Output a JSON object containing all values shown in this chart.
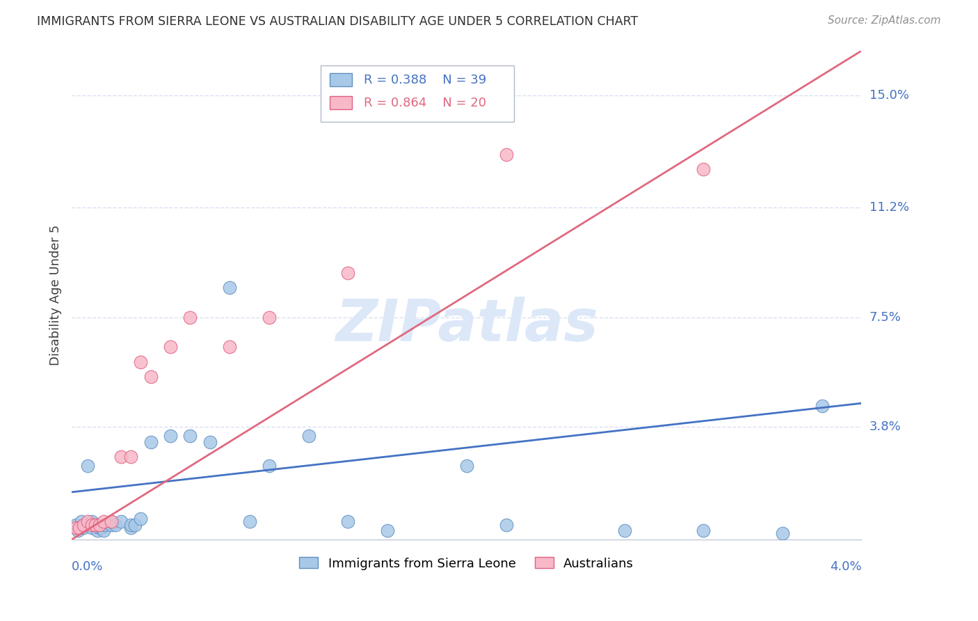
{
  "title": "IMMIGRANTS FROM SIERRA LEONE VS AUSTRALIAN DISABILITY AGE UNDER 5 CORRELATION CHART",
  "source": "Source: ZipAtlas.com",
  "ylabel": "Disability Age Under 5",
  "ytick_labels": [
    "15.0%",
    "11.2%",
    "7.5%",
    "3.8%"
  ],
  "ytick_values": [
    0.15,
    0.112,
    0.075,
    0.038
  ],
  "xlim": [
    0.0,
    0.04
  ],
  "ylim": [
    0.0,
    0.165
  ],
  "legend_blue_r": "R = 0.388",
  "legend_blue_n": "N = 39",
  "legend_pink_r": "R = 0.864",
  "legend_pink_n": "N = 20",
  "blue_scatter_x": [
    0.0002,
    0.0003,
    0.0004,
    0.0005,
    0.0006,
    0.0007,
    0.0008,
    0.001,
    0.001,
    0.0012,
    0.0013,
    0.0014,
    0.0015,
    0.0016,
    0.0017,
    0.002,
    0.002,
    0.0022,
    0.0025,
    0.003,
    0.003,
    0.0032,
    0.0035,
    0.004,
    0.005,
    0.006,
    0.007,
    0.008,
    0.009,
    0.01,
    0.012,
    0.014,
    0.016,
    0.02,
    0.022,
    0.028,
    0.032,
    0.036,
    0.038
  ],
  "blue_scatter_y": [
    0.005,
    0.003,
    0.004,
    0.006,
    0.004,
    0.005,
    0.025,
    0.004,
    0.006,
    0.005,
    0.003,
    0.004,
    0.004,
    0.003,
    0.005,
    0.005,
    0.006,
    0.005,
    0.006,
    0.004,
    0.005,
    0.005,
    0.007,
    0.033,
    0.035,
    0.035,
    0.033,
    0.085,
    0.006,
    0.025,
    0.035,
    0.006,
    0.003,
    0.025,
    0.005,
    0.003,
    0.003,
    0.002,
    0.045
  ],
  "pink_scatter_x": [
    0.0002,
    0.0004,
    0.0006,
    0.0008,
    0.001,
    0.0012,
    0.0014,
    0.0016,
    0.002,
    0.0025,
    0.003,
    0.0035,
    0.004,
    0.005,
    0.006,
    0.008,
    0.01,
    0.014,
    0.022,
    0.032
  ],
  "pink_scatter_y": [
    0.004,
    0.004,
    0.005,
    0.006,
    0.005,
    0.005,
    0.005,
    0.006,
    0.006,
    0.028,
    0.028,
    0.06,
    0.055,
    0.065,
    0.075,
    0.065,
    0.075,
    0.09,
    0.13,
    0.125
  ],
  "blue_line_x": [
    0.0,
    0.04
  ],
  "blue_line_y": [
    0.016,
    0.046
  ],
  "pink_line_x": [
    0.0,
    0.04
  ],
  "pink_line_y": [
    0.0,
    0.165
  ],
  "blue_scatter_color": "#a8c8e8",
  "blue_edge_color": "#6090c0",
  "pink_scatter_color": "#f8b8c8",
  "pink_edge_color": "#e06080",
  "blue_line_color": "#4472c4",
  "pink_line_color": "#e06880",
  "grid_color": "#d8e0f0",
  "title_color": "#303030",
  "source_color": "#909090",
  "axis_label_color": "#4472c4",
  "ylabel_color": "#404040",
  "watermark_color": "#dce8f8"
}
